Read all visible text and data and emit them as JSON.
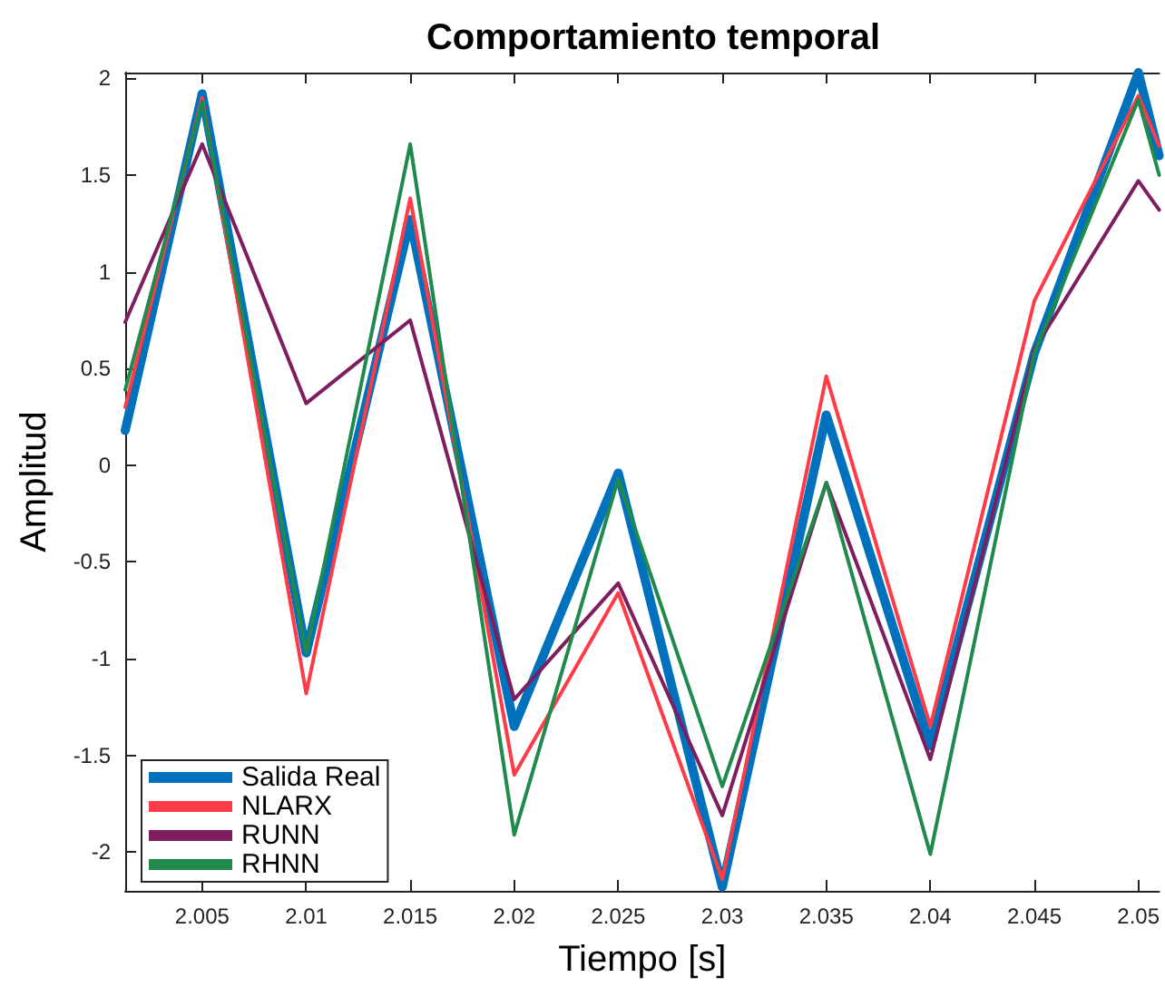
{
  "chart_data": {
    "type": "line",
    "title": "Comportamiento temporal",
    "xlabel": "Tiempo [s]",
    "ylabel": "Amplitud",
    "x": [
      2.0013,
      2.005,
      2.01,
      2.015,
      2.02,
      2.025,
      2.03,
      2.035,
      2.04,
      2.045,
      2.05,
      2.051
    ],
    "series": [
      {
        "name": "Salida Real",
        "color": "#0072bd",
        "values": [
          0.18,
          1.92,
          -0.97,
          1.27,
          -1.35,
          -0.04,
          -2.18,
          0.26,
          -1.45,
          0.58,
          2.03,
          1.6
        ]
      },
      {
        "name": "NLARX",
        "color": "#ff3b47",
        "values": [
          0.3,
          1.9,
          -1.18,
          1.38,
          -1.6,
          -0.66,
          -2.14,
          0.46,
          -1.35,
          0.85,
          1.91,
          1.65
        ]
      },
      {
        "name": "RUNN",
        "color": "#7e1e5f",
        "values": [
          0.74,
          1.66,
          0.32,
          0.75,
          -1.21,
          -0.61,
          -1.81,
          -0.09,
          -1.52,
          0.6,
          1.47,
          1.32
        ]
      },
      {
        "name": "RHNN",
        "color": "#1f8a4c",
        "values": [
          0.39,
          1.88,
          -0.97,
          1.66,
          -1.91,
          -0.07,
          -1.66,
          -0.09,
          -2.01,
          0.58,
          1.89,
          1.5
        ]
      }
    ],
    "xlim": [
      2.0013,
      2.051
    ],
    "ylim": [
      -2.2,
      2.03
    ],
    "xticks": [
      2.005,
      2.01,
      2.015,
      2.02,
      2.025,
      2.03,
      2.035,
      2.04,
      2.045,
      2.05
    ],
    "yticks": [
      -2,
      -1.5,
      -1,
      -0.5,
      0,
      0.5,
      1,
      1.5,
      2
    ],
    "grid": false,
    "legend": "bottom left",
    "marker": "none",
    "line_style": "solid"
  }
}
